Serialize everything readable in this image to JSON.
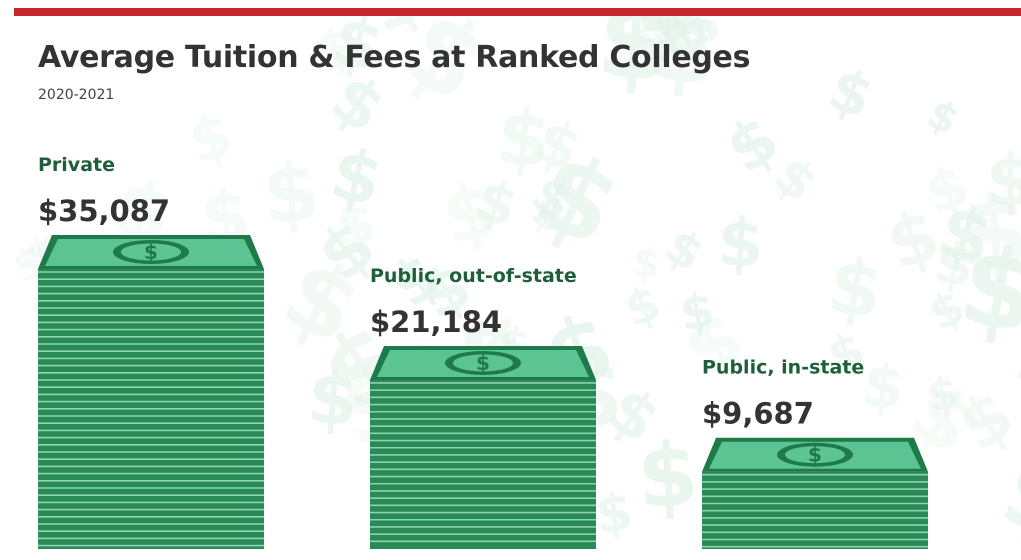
{
  "header": {
    "title": "Average Tuition & Fees at Ranked Colleges",
    "subtitle": "2020-2021"
  },
  "colors": {
    "accent_bar": "#c4262e",
    "label_green": "#1e5e3a",
    "cash_edge": "#2a8a57",
    "cash_lines": "#8cd3ae",
    "cash_face": "#5cc492",
    "cash_dark": "#1f7a4a",
    "background_symbols": "#e3f3ea"
  },
  "icons": [
    "dollar-sign-icon",
    "cash-stack-icon"
  ],
  "chart_data": {
    "type": "bar",
    "title": "Average Tuition & Fees at Ranked Colleges",
    "subtitle": "2020-2021",
    "categories": [
      "Private",
      "Public, out-of-state",
      "Public, in-state"
    ],
    "values": [
      35087,
      21184,
      9687
    ],
    "value_labels": [
      "$35,087",
      "$21,184",
      "$9,687"
    ],
    "ylim": [
      0,
      35087
    ],
    "grid": false,
    "legend": "none"
  }
}
